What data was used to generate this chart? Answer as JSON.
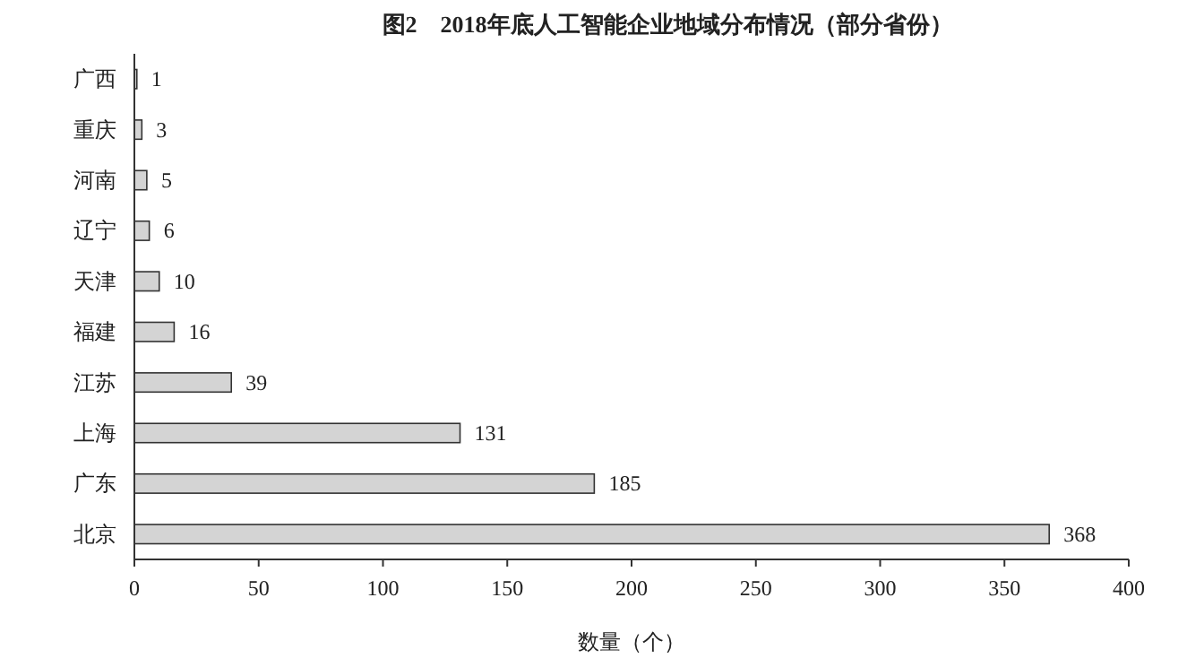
{
  "chart_data": {
    "type": "bar",
    "orientation": "horizontal",
    "title": "图2　2018年底人工智能企业地域分布情况（部分省份）",
    "xlabel": "数量（个）",
    "categories": [
      "广西",
      "重庆",
      "河南",
      "辽宁",
      "天津",
      "福建",
      "江苏",
      "上海",
      "广东",
      "北京"
    ],
    "values": [
      1,
      3,
      5,
      6,
      10,
      16,
      39,
      131,
      185,
      368
    ],
    "color": "#d4d4d4",
    "xlim": [
      0,
      400
    ],
    "xticks": [
      0,
      50,
      100,
      150,
      200,
      250,
      300,
      350,
      400
    ],
    "data_labels": true,
    "grid": false
  }
}
